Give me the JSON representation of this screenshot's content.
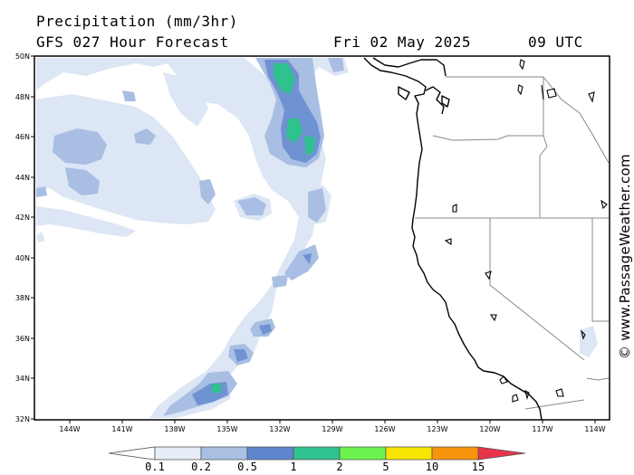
{
  "header": {
    "line1": "Precipitation (mm/3hr)",
    "line2_left": "GFS 027 Hour Forecast",
    "line2_mid": "Fri 02 May 2025",
    "line2_right": "09 UTC"
  },
  "credit": "© www.PassageWeather.com",
  "map": {
    "lat_range": [
      32,
      50
    ],
    "lon_range": [
      -146,
      -113
    ],
    "lat_labels": [
      "50N",
      "48N",
      "46N",
      "44N",
      "42N",
      "40N",
      "38N",
      "36N",
      "34N",
      "32N"
    ],
    "lon_labels": [
      "144W",
      "141W",
      "138W",
      "135W",
      "132W",
      "129W",
      "126W",
      "123W",
      "120W",
      "117W",
      "114W"
    ],
    "colors": {
      "ocean": "#ffffff",
      "land": "#ffffff",
      "coastline": "#000000",
      "state_border": "#888888"
    }
  },
  "legend": {
    "labels": [
      "0.1",
      "0.2",
      "0.5",
      "1",
      "2",
      "5",
      "10",
      "15"
    ],
    "colors": [
      "#ffffff",
      "#e6edf8",
      "#a9c0e3",
      "#5f86cc",
      "#2fc28e",
      "#6cf24f",
      "#f7e400",
      "#f7940c",
      "#e8344a"
    ]
  },
  "precip_classes": {
    "light": "#dde6f5",
    "moderate": "#a8bee2",
    "heavy": "#6f92d3",
    "very_heavy": "#2fc28e"
  }
}
